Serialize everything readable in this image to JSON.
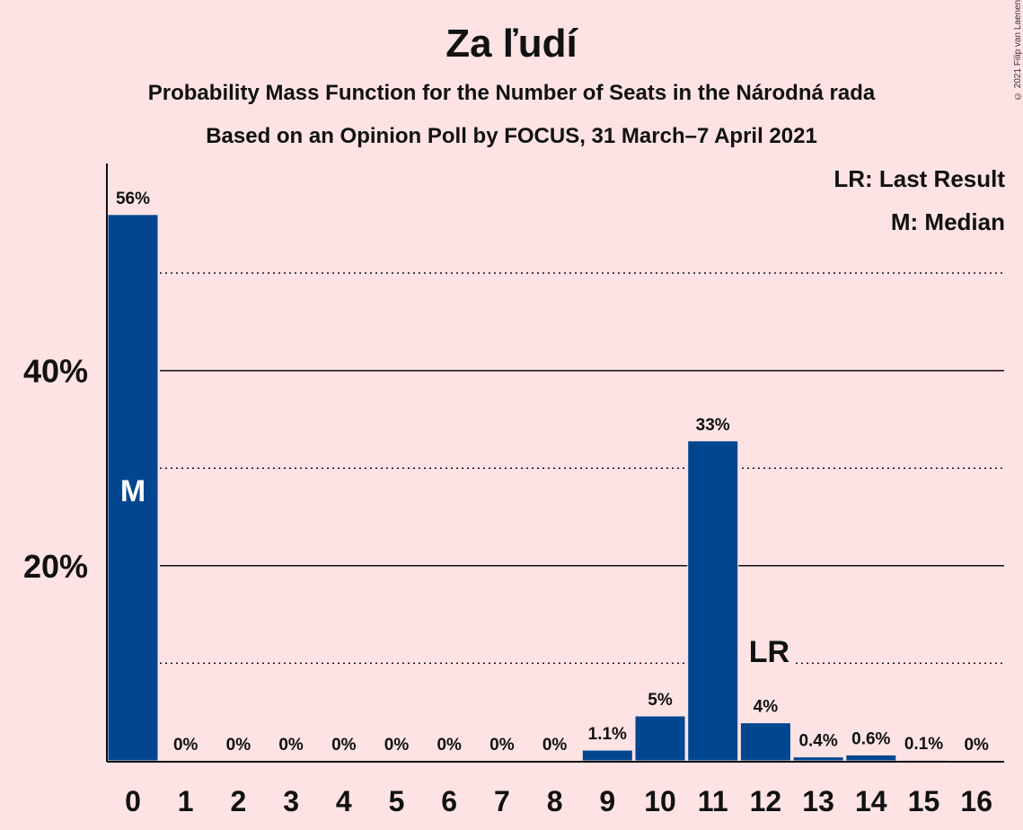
{
  "title": "Za ľudí",
  "subtitle1": "Probability Mass Function for the Number of Seats in the Národná rada",
  "subtitle2": "Based on an Opinion Poll by FOCUS, 31 March–7 April 2021",
  "copyright": "© 2021 Filip van Laenen",
  "legend": {
    "last_result": "LR: Last Result",
    "median": "M: Median"
  },
  "colors": {
    "background": "#fde3e4",
    "bar": "#024690",
    "text": "#111111"
  },
  "chart_data": {
    "type": "bar",
    "categories": [
      "0",
      "1",
      "2",
      "3",
      "4",
      "5",
      "6",
      "7",
      "8",
      "9",
      "10",
      "11",
      "12",
      "13",
      "14",
      "15",
      "16"
    ],
    "values": [
      56,
      0,
      0,
      0,
      0,
      0,
      0,
      0,
      0,
      1.1,
      4.6,
      32.8,
      3.9,
      0.4,
      0.6,
      0.1,
      0
    ],
    "value_labels": [
      "56%",
      "0%",
      "0%",
      "0%",
      "0%",
      "0%",
      "0%",
      "0%",
      "0%",
      "1.1%",
      "5%",
      "33%",
      "4%",
      "0.4%",
      "0.6%",
      "0.1%",
      "0%"
    ],
    "ytick_labels": [
      "20%",
      "40%"
    ],
    "ytick_values": [
      20,
      40
    ],
    "dotted_gridlines": [
      10,
      30,
      50
    ],
    "ylim": [
      0,
      61
    ],
    "median_category": "0",
    "median_marker": "M",
    "last_result_category": "12",
    "last_result_marker": "LR",
    "grid": true,
    "legend_position": "top-right"
  }
}
